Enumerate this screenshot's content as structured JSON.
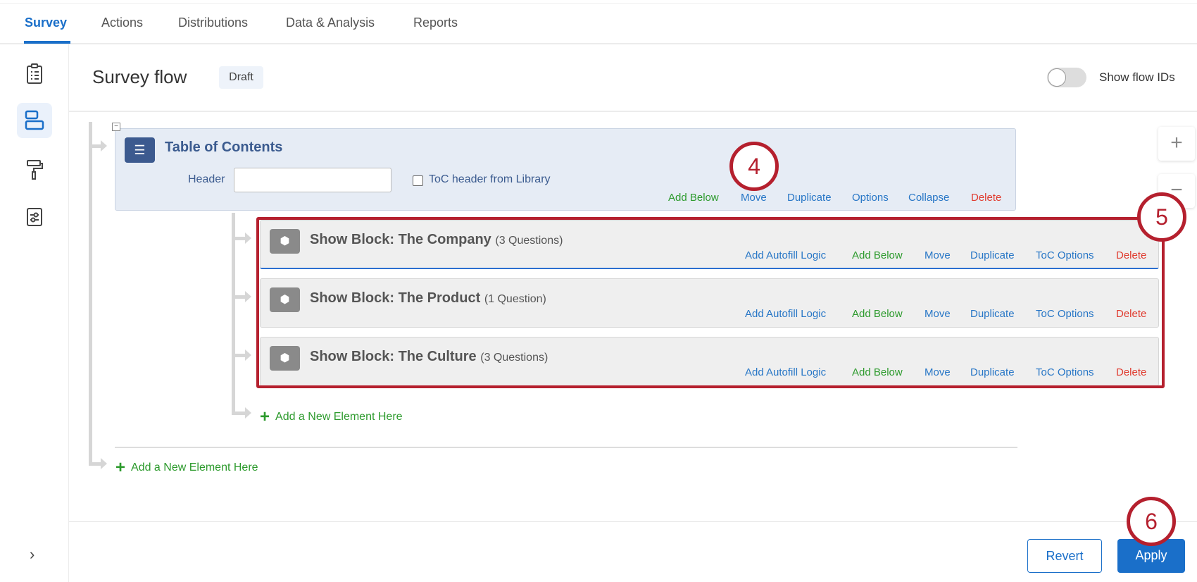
{
  "tabs": [
    {
      "label": "Survey",
      "active": true
    },
    {
      "label": "Actions"
    },
    {
      "label": "Distributions"
    },
    {
      "label": "Data & Analysis"
    },
    {
      "label": "Reports"
    }
  ],
  "sidebar": {
    "icons": [
      "clipboard-icon",
      "survey-flow-icon",
      "paint-roller-icon",
      "settings-sliders-icon"
    ],
    "expand": "›"
  },
  "header": {
    "title": "Survey flow",
    "badge": "Draft",
    "toggle_label": "Show flow IDs",
    "toggle_on": false
  },
  "zoom": {
    "plus": "+",
    "minus": "−"
  },
  "toc": {
    "title": "Table of Contents",
    "header_label": "Header",
    "header_value": "",
    "checkbox_label": "ToC header from Library",
    "checkbox_checked": false,
    "links": {
      "add_below": "Add Below",
      "move": "Move",
      "duplicate": "Duplicate",
      "options": "Options",
      "collapse": "Collapse",
      "delete": "Delete"
    }
  },
  "blocks": [
    {
      "title": "Show Block: The Company",
      "count": "(3 Questions)"
    },
    {
      "title": "Show Block: The Product",
      "count": "(1 Question)"
    },
    {
      "title": "Show Block: The Culture",
      "count": "(3 Questions)"
    }
  ],
  "block_links": {
    "autofill": "Add Autofill Logic",
    "add_below": "Add Below",
    "move": "Move",
    "duplicate": "Duplicate",
    "toc_options": "ToC Options",
    "delete": "Delete"
  },
  "add_new": "Add a New Element Here",
  "annotations": [
    "4",
    "5",
    "6"
  ],
  "footer": {
    "revert": "Revert",
    "apply": "Apply"
  },
  "colors": {
    "accent": "#1a6fc9",
    "annotation": "#b5202e",
    "link": "#2776c6",
    "add": "#2c9a2c",
    "delete": "#e03a2e"
  }
}
